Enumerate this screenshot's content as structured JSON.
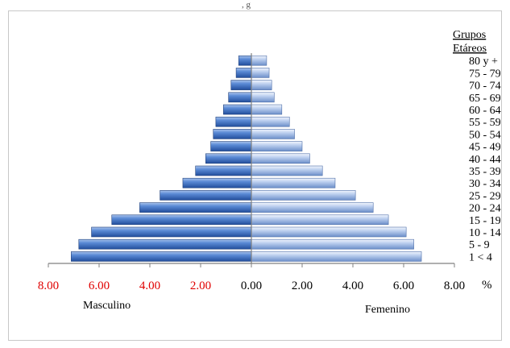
{
  "chart_data": {
    "type": "bar",
    "orientation": "horizontal",
    "title": "",
    "top_partial_text": ", g",
    "legend_title_1": "Grupos",
    "legend_title_2": "Etáreos",
    "categories": [
      "1 < 4",
      "5 - 9",
      "10 - 14",
      "15 - 19",
      "20 - 24",
      "25 - 29",
      "30 - 34",
      "35 - 39",
      "40 - 44",
      "45 - 49",
      "50 - 54",
      "55 - 59",
      "60 - 64",
      "65 - 69",
      "70 - 74",
      "75 - 79",
      "80 y +"
    ],
    "series": [
      {
        "name": "Masculino",
        "values": [
          7.1,
          6.8,
          6.3,
          5.5,
          4.4,
          3.6,
          2.7,
          2.2,
          1.8,
          1.6,
          1.5,
          1.4,
          1.1,
          0.9,
          0.8,
          0.6,
          0.5
        ]
      },
      {
        "name": "Femenino",
        "values": [
          6.7,
          6.4,
          6.1,
          5.4,
          4.8,
          4.1,
          3.3,
          2.8,
          2.3,
          2.0,
          1.7,
          1.5,
          1.2,
          0.9,
          0.8,
          0.7,
          0.6
        ]
      }
    ],
    "xlim": [
      -8,
      8
    ],
    "x_ticks": [
      "8.00",
      "6.00",
      "4.00",
      "2.00",
      "0.00",
      "2.00",
      "4.00",
      "6.00",
      "8.00"
    ],
    "x_unit": "%",
    "label_left": "Masculino",
    "label_right": "Femenino",
    "colors": {
      "male": "#3f6fc0",
      "female": "#9fb9e3",
      "negative_tick": "#e00000"
    }
  }
}
